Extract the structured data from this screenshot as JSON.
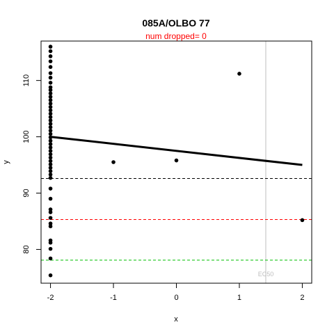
{
  "chart_data": {
    "type": "scatter",
    "title": "085A/OLBO 77",
    "subtitle": "num dropped= 0",
    "xlabel": "x",
    "ylabel": "y",
    "xlim": [
      -2.15,
      2.15
    ],
    "ylim": [
      74,
      117
    ],
    "x_ticks": [
      -2,
      -1,
      0,
      1,
      2
    ],
    "y_ticks": [
      80,
      90,
      100,
      110
    ],
    "points": [
      {
        "x": -2,
        "y": 116.0
      },
      {
        "x": -2,
        "y": 115.2
      },
      {
        "x": -2,
        "y": 114.3
      },
      {
        "x": -2,
        "y": 113.4
      },
      {
        "x": -2,
        "y": 112.4
      },
      {
        "x": -2,
        "y": 111.3
      },
      {
        "x": -2,
        "y": 110.5
      },
      {
        "x": -2,
        "y": 109.6
      },
      {
        "x": -2,
        "y": 108.8
      },
      {
        "x": -2,
        "y": 108.3
      },
      {
        "x": -2,
        "y": 107.7
      },
      {
        "x": -2,
        "y": 107.1
      },
      {
        "x": -2,
        "y": 106.5
      },
      {
        "x": -2,
        "y": 105.9
      },
      {
        "x": -2,
        "y": 105.3
      },
      {
        "x": -2,
        "y": 104.7
      },
      {
        "x": -2,
        "y": 104.1
      },
      {
        "x": -2,
        "y": 103.5
      },
      {
        "x": -2,
        "y": 102.9
      },
      {
        "x": -2,
        "y": 102.3
      },
      {
        "x": -2,
        "y": 101.7
      },
      {
        "x": -2,
        "y": 101.1
      },
      {
        "x": -2,
        "y": 100.5
      },
      {
        "x": -2,
        "y": 99.9
      },
      {
        "x": -2,
        "y": 99.3
      },
      {
        "x": -2,
        "y": 98.7
      },
      {
        "x": -2,
        "y": 98.1
      },
      {
        "x": -2,
        "y": 97.5
      },
      {
        "x": -2,
        "y": 96.9
      },
      {
        "x": -2,
        "y": 96.3
      },
      {
        "x": -2,
        "y": 95.7
      },
      {
        "x": -2,
        "y": 95.1
      },
      {
        "x": -2,
        "y": 94.5
      },
      {
        "x": -2,
        "y": 93.9
      },
      {
        "x": -2,
        "y": 93.3
      },
      {
        "x": -2,
        "y": 92.7
      },
      {
        "x": -2,
        "y": 90.8
      },
      {
        "x": -2,
        "y": 89.0
      },
      {
        "x": -2,
        "y": 87.1
      },
      {
        "x": -2,
        "y": 86.6
      },
      {
        "x": -2,
        "y": 85.6
      },
      {
        "x": -2,
        "y": 84.6
      },
      {
        "x": -2,
        "y": 84.1
      },
      {
        "x": -2,
        "y": 81.6
      },
      {
        "x": -2,
        "y": 81.2
      },
      {
        "x": -2,
        "y": 80.1
      },
      {
        "x": -2,
        "y": 78.4
      },
      {
        "x": -2,
        "y": 75.4
      },
      {
        "x": -1,
        "y": 95.5
      },
      {
        "x": 0,
        "y": 95.8
      },
      {
        "x": 1,
        "y": 111.2
      },
      {
        "x": 2,
        "y": 85.2
      }
    ],
    "fit_line": {
      "x": [
        -2,
        2
      ],
      "y": [
        100.0,
        95.0
      ],
      "color": "#000000"
    },
    "reference_lines": [
      {
        "y": 92.6,
        "color": "#000000"
      },
      {
        "y": 85.3,
        "color": "#ff0000"
      },
      {
        "y": 78.1,
        "color": "#00c000"
      }
    ],
    "ec50": {
      "x": 1.42,
      "label": "EC50",
      "color": "#bebebe"
    },
    "grid": false,
    "legend": "none"
  }
}
